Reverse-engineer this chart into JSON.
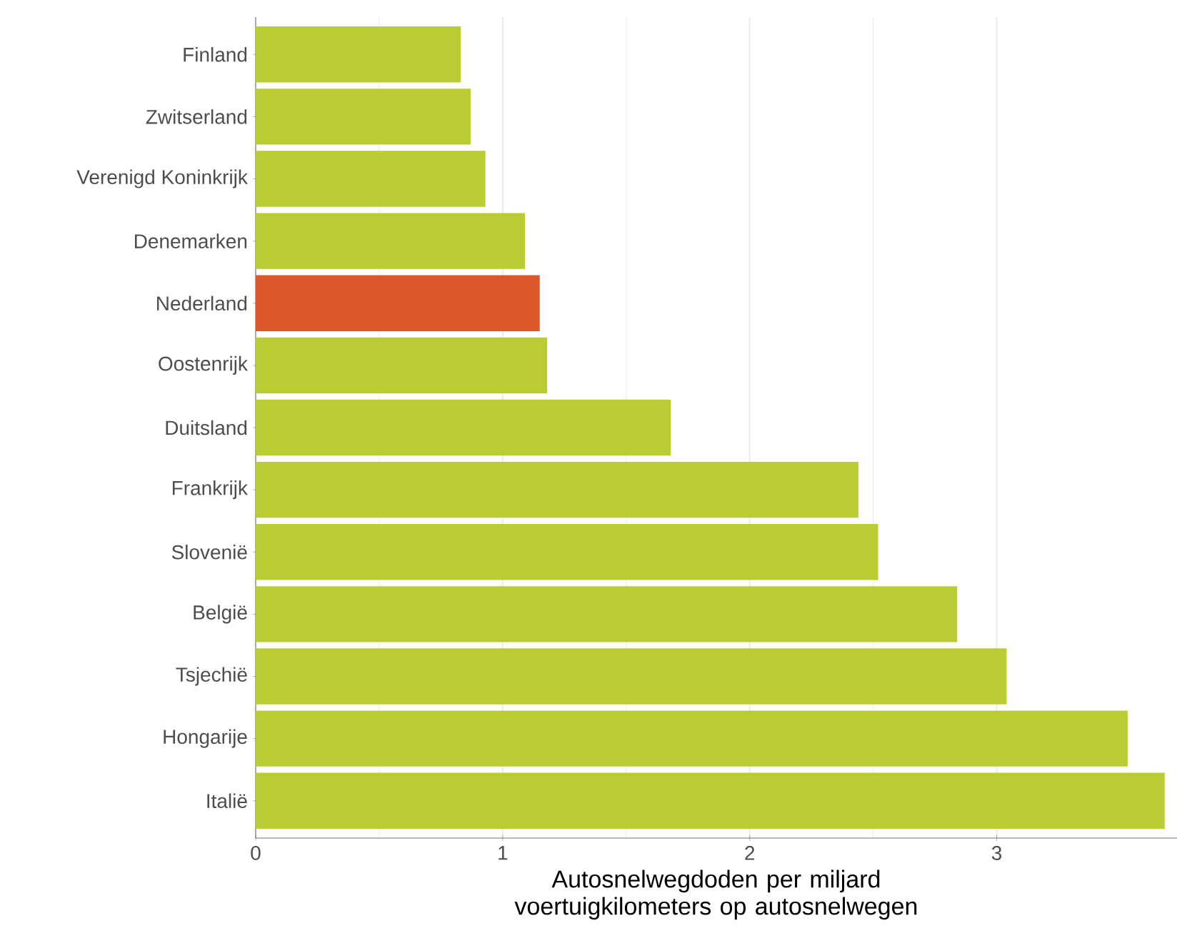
{
  "chart_data": {
    "type": "bar",
    "orientation": "horizontal",
    "xlabel": "Autosnelwegdoden per miljard voertuigkilometers op autosnelwegen",
    "categories": [
      "Finland",
      "Zwitserland",
      "Verenigd Koninkrijk",
      "Denemarken",
      "Nederland",
      "Oostenrijk",
      "Duitsland",
      "Frankrijk",
      "Slovenië",
      "België",
      "Tsjechië",
      "Hongarije",
      "Italië"
    ],
    "values": [
      0.83,
      0.87,
      0.93,
      1.09,
      1.15,
      1.18,
      1.68,
      2.44,
      2.52,
      2.84,
      3.04,
      3.53,
      3.68
    ],
    "colors": [
      "#b9cc34",
      "#b9cc34",
      "#b9cc34",
      "#b9cc34",
      "#dc582a",
      "#b9cc34",
      "#b9cc34",
      "#b9cc34",
      "#b9cc34",
      "#b9cc34",
      "#b9cc34",
      "#b9cc34",
      "#b9cc34"
    ],
    "xlim": [
      0,
      3.73
    ],
    "xticks": [
      0,
      1,
      2,
      3
    ],
    "grid": "x"
  }
}
